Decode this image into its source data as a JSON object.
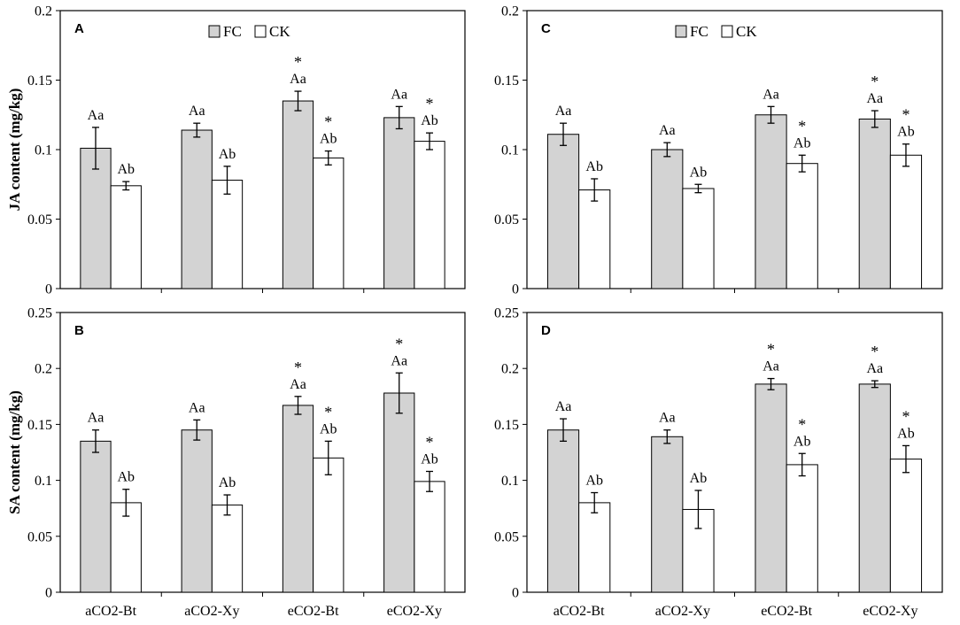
{
  "chart_data": {
    "type": "bar",
    "categories": [
      "aCO2-Bt",
      "aCO2-Xy",
      "eCO2-Bt",
      "eCO2-Xy"
    ],
    "legend": [
      "FC",
      "CK"
    ],
    "colors": {
      "FC": "#d3d3d3",
      "CK": "#ffffff",
      "axis": "#000000"
    },
    "panels": [
      {
        "id": "A",
        "letter": "A",
        "ylabel": "JA content (mg/kg)",
        "ylim": [
          0,
          0.2
        ],
        "yticks": [
          "0",
          "0.05",
          "0.1",
          "0.15",
          "0.2"
        ],
        "ytick_values": [
          0,
          0.05,
          0.1,
          0.15,
          0.2
        ],
        "series": [
          {
            "name": "FC",
            "values": [
              0.101,
              0.114,
              0.135,
              0.123
            ],
            "errors": [
              0.015,
              0.005,
              0.007,
              0.008
            ],
            "labels": [
              "Aa",
              "Aa",
              "Aa",
              "Aa"
            ],
            "stars": [
              "",
              "",
              "*",
              ""
            ]
          },
          {
            "name": "CK",
            "values": [
              0.074,
              0.078,
              0.094,
              0.106
            ],
            "errors": [
              0.003,
              0.01,
              0.005,
              0.006
            ],
            "labels": [
              "Ab",
              "Ab",
              "Ab",
              "Ab"
            ],
            "stars": [
              "",
              "",
              "*",
              "*"
            ]
          }
        ]
      },
      {
        "id": "B",
        "letter": "B",
        "ylabel": "SA content (mg/kg)",
        "ylim": [
          0,
          0.25
        ],
        "yticks": [
          "0",
          "0.05",
          "0.1",
          "0.15",
          "0.2",
          "0.25"
        ],
        "ytick_values": [
          0,
          0.05,
          0.1,
          0.15,
          0.2,
          0.25
        ],
        "series": [
          {
            "name": "FC",
            "values": [
              0.135,
              0.145,
              0.167,
              0.178
            ],
            "errors": [
              0.01,
              0.009,
              0.008,
              0.018
            ],
            "labels": [
              "Aa",
              "Aa",
              "Aa",
              "Aa"
            ],
            "stars": [
              "",
              "",
              "*",
              "*"
            ]
          },
          {
            "name": "CK",
            "values": [
              0.08,
              0.078,
              0.12,
              0.099
            ],
            "errors": [
              0.012,
              0.009,
              0.015,
              0.009
            ],
            "labels": [
              "Ab",
              "Ab",
              "Ab",
              "Ab"
            ],
            "stars": [
              "",
              "",
              "*",
              "*"
            ]
          }
        ]
      },
      {
        "id": "C",
        "letter": "C",
        "ylabel": "",
        "ylim": [
          0,
          0.2
        ],
        "yticks": [
          "0",
          "0.05",
          "0.1",
          "0.15",
          "0.2"
        ],
        "ytick_values": [
          0,
          0.05,
          0.1,
          0.15,
          0.2
        ],
        "series": [
          {
            "name": "FC",
            "values": [
              0.111,
              0.1,
              0.125,
              0.122
            ],
            "errors": [
              0.008,
              0.005,
              0.006,
              0.006
            ],
            "labels": [
              "Aa",
              "Aa",
              "Aa",
              "Aa"
            ],
            "stars": [
              "",
              "",
              "",
              "*"
            ]
          },
          {
            "name": "CK",
            "values": [
              0.071,
              0.072,
              0.09,
              0.096
            ],
            "errors": [
              0.008,
              0.003,
              0.006,
              0.008
            ],
            "labels": [
              "Ab",
              "Ab",
              "Ab",
              "Ab"
            ],
            "stars": [
              "",
              "",
              "*",
              "*"
            ]
          }
        ]
      },
      {
        "id": "D",
        "letter": "D",
        "ylabel": "",
        "ylim": [
          0,
          0.25
        ],
        "yticks": [
          "0",
          "0.05",
          "0.1",
          "0.15",
          "0.2",
          "0.25"
        ],
        "ytick_values": [
          0,
          0.05,
          0.1,
          0.15,
          0.2,
          0.25
        ],
        "series": [
          {
            "name": "FC",
            "values": [
              0.145,
              0.139,
              0.186,
              0.186
            ],
            "errors": [
              0.01,
              0.006,
              0.005,
              0.003
            ],
            "labels": [
              "Aa",
              "Aa",
              "Aa",
              "Aa"
            ],
            "stars": [
              "",
              "",
              "*",
              "*"
            ]
          },
          {
            "name": "CK",
            "values": [
              0.08,
              0.074,
              0.114,
              0.119
            ],
            "errors": [
              0.009,
              0.017,
              0.01,
              0.012
            ],
            "labels": [
              "Ab",
              "Ab",
              "Ab",
              "Ab"
            ],
            "stars": [
              "",
              "",
              "*",
              "*"
            ]
          }
        ]
      }
    ]
  }
}
